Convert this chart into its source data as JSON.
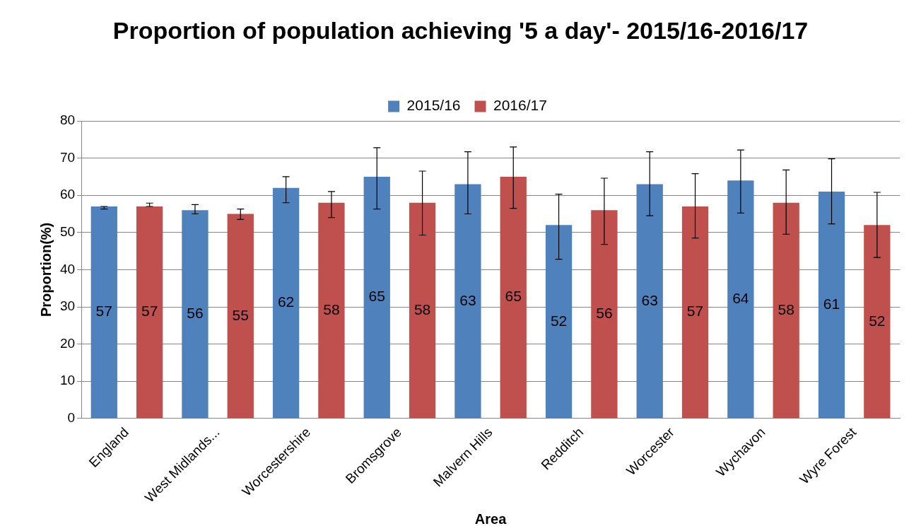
{
  "chart_data": {
    "type": "bar",
    "title": "Proportion of population achieving '5 a day'- 2015/16-2016/17",
    "xlabel": "Area",
    "ylabel": "Proportion(%)",
    "categories": [
      "England",
      "West Midlands...",
      "Worcestershire",
      "Bromsgrove",
      "Malvern Hills",
      "Redditch",
      "Worcester",
      "Wychavon",
      "Wyre Forest"
    ],
    "series": [
      {
        "name": "2015/16",
        "color": "#4f81bd",
        "values": [
          57,
          56,
          62,
          65,
          63,
          52,
          63,
          64,
          61
        ],
        "errors": [
          [
            56.3,
            57.0
          ],
          [
            55.0,
            57.5
          ],
          [
            58.0,
            65.0
          ],
          [
            56.3,
            72.8
          ],
          [
            55.0,
            71.7
          ],
          [
            42.8,
            60.3
          ],
          [
            54.5,
            71.7
          ],
          [
            55.2,
            72.2
          ],
          [
            52.3,
            69.8
          ]
        ]
      },
      {
        "name": "2016/17",
        "color": "#c0504d",
        "values": [
          57,
          55,
          58,
          58,
          65,
          56,
          57,
          58,
          52
        ],
        "errors": [
          [
            57.0,
            57.9
          ],
          [
            53.5,
            56.3
          ],
          [
            54.0,
            61.0
          ],
          [
            49.3,
            66.5
          ],
          [
            56.5,
            73.0
          ],
          [
            46.8,
            64.6
          ],
          [
            48.5,
            65.8
          ],
          [
            49.5,
            66.8
          ],
          [
            43.3,
            60.8
          ]
        ]
      }
    ],
    "ylim": [
      0,
      80
    ],
    "yticks": [
      0,
      10,
      20,
      30,
      40,
      50,
      60,
      70,
      80
    ],
    "grid": "y",
    "legend": "top",
    "data_labels": true
  }
}
